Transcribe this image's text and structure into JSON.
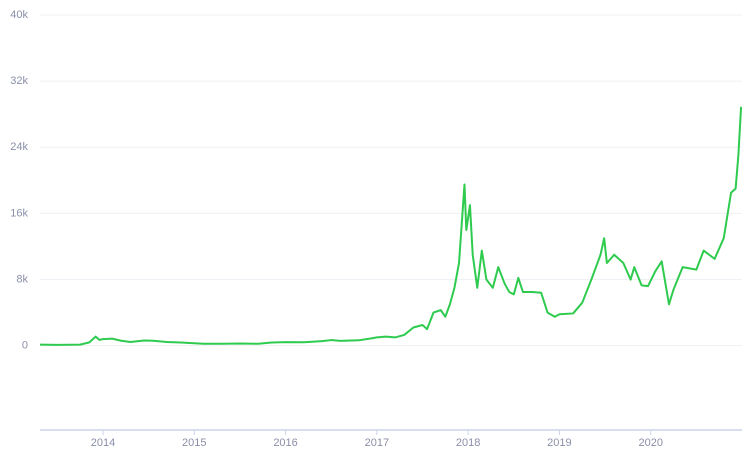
{
  "chart_data": {
    "type": "line",
    "x": [
      2013.31,
      2013.5,
      2013.75,
      2013.85,
      2013.92,
      2013.96,
      2014.0,
      2014.1,
      2014.2,
      2014.3,
      2014.45,
      2014.55,
      2014.7,
      2014.85,
      2015.0,
      2015.1,
      2015.3,
      2015.5,
      2015.7,
      2015.85,
      2016.0,
      2016.2,
      2016.4,
      2016.5,
      2016.6,
      2016.8,
      2016.95,
      2017.0,
      2017.1,
      2017.2,
      2017.3,
      2017.4,
      2017.5,
      2017.55,
      2017.62,
      2017.7,
      2017.75,
      2017.8,
      2017.85,
      2017.9,
      2017.96,
      2017.98,
      2018.02,
      2018.05,
      2018.1,
      2018.15,
      2018.2,
      2018.27,
      2018.33,
      2018.4,
      2018.45,
      2018.5,
      2018.55,
      2018.6,
      2018.7,
      2018.8,
      2018.87,
      2018.95,
      2019.0,
      2019.15,
      2019.25,
      2019.35,
      2019.45,
      2019.49,
      2019.52,
      2019.6,
      2019.7,
      2019.78,
      2019.82,
      2019.9,
      2019.97,
      2020.05,
      2020.12,
      2020.2,
      2020.25,
      2020.35,
      2020.5,
      2020.58,
      2020.7,
      2020.8,
      2020.88,
      2020.93,
      2020.96,
      2020.99
    ],
    "series": [
      {
        "color": "#2fcb4f",
        "values": [
          120,
          100,
          130,
          400,
          1100,
          700,
          800,
          850,
          600,
          450,
          620,
          600,
          450,
          380,
          300,
          230,
          230,
          260,
          230,
          380,
          430,
          420,
          550,
          680,
          580,
          650,
          900,
          1000,
          1100,
          1000,
          1300,
          2200,
          2500,
          2000,
          4000,
          4300,
          3500,
          5000,
          7000,
          10000,
          19500,
          14000,
          17000,
          11000,
          7000,
          11500,
          8000,
          7000,
          9500,
          7500,
          6500,
          6200,
          8200,
          6500,
          6500,
          6400,
          4000,
          3500,
          3800,
          3900,
          5200,
          8000,
          11000,
          13000,
          10000,
          11000,
          10000,
          8000,
          9500,
          7300,
          7200,
          9000,
          10200,
          5000,
          6800,
          9500,
          9200,
          11500,
          10500,
          13000,
          18500,
          19000,
          23000,
          28900
        ]
      }
    ],
    "xlim": [
      2013.31,
      2021.0
    ],
    "xticks": [
      2014,
      2015,
      2016,
      2017,
      2018,
      2019,
      2020
    ],
    "ylim": [
      -10200,
      40000
    ],
    "yticks": [
      0,
      {
        "value": 8000,
        "label": "8k"
      },
      {
        "value": 16000,
        "label": "16k"
      },
      {
        "value": 24000,
        "label": "24k"
      },
      {
        "value": 32000,
        "label": "32k"
      },
      {
        "value": 40000,
        "label": "40k"
      }
    ],
    "grid": true
  }
}
